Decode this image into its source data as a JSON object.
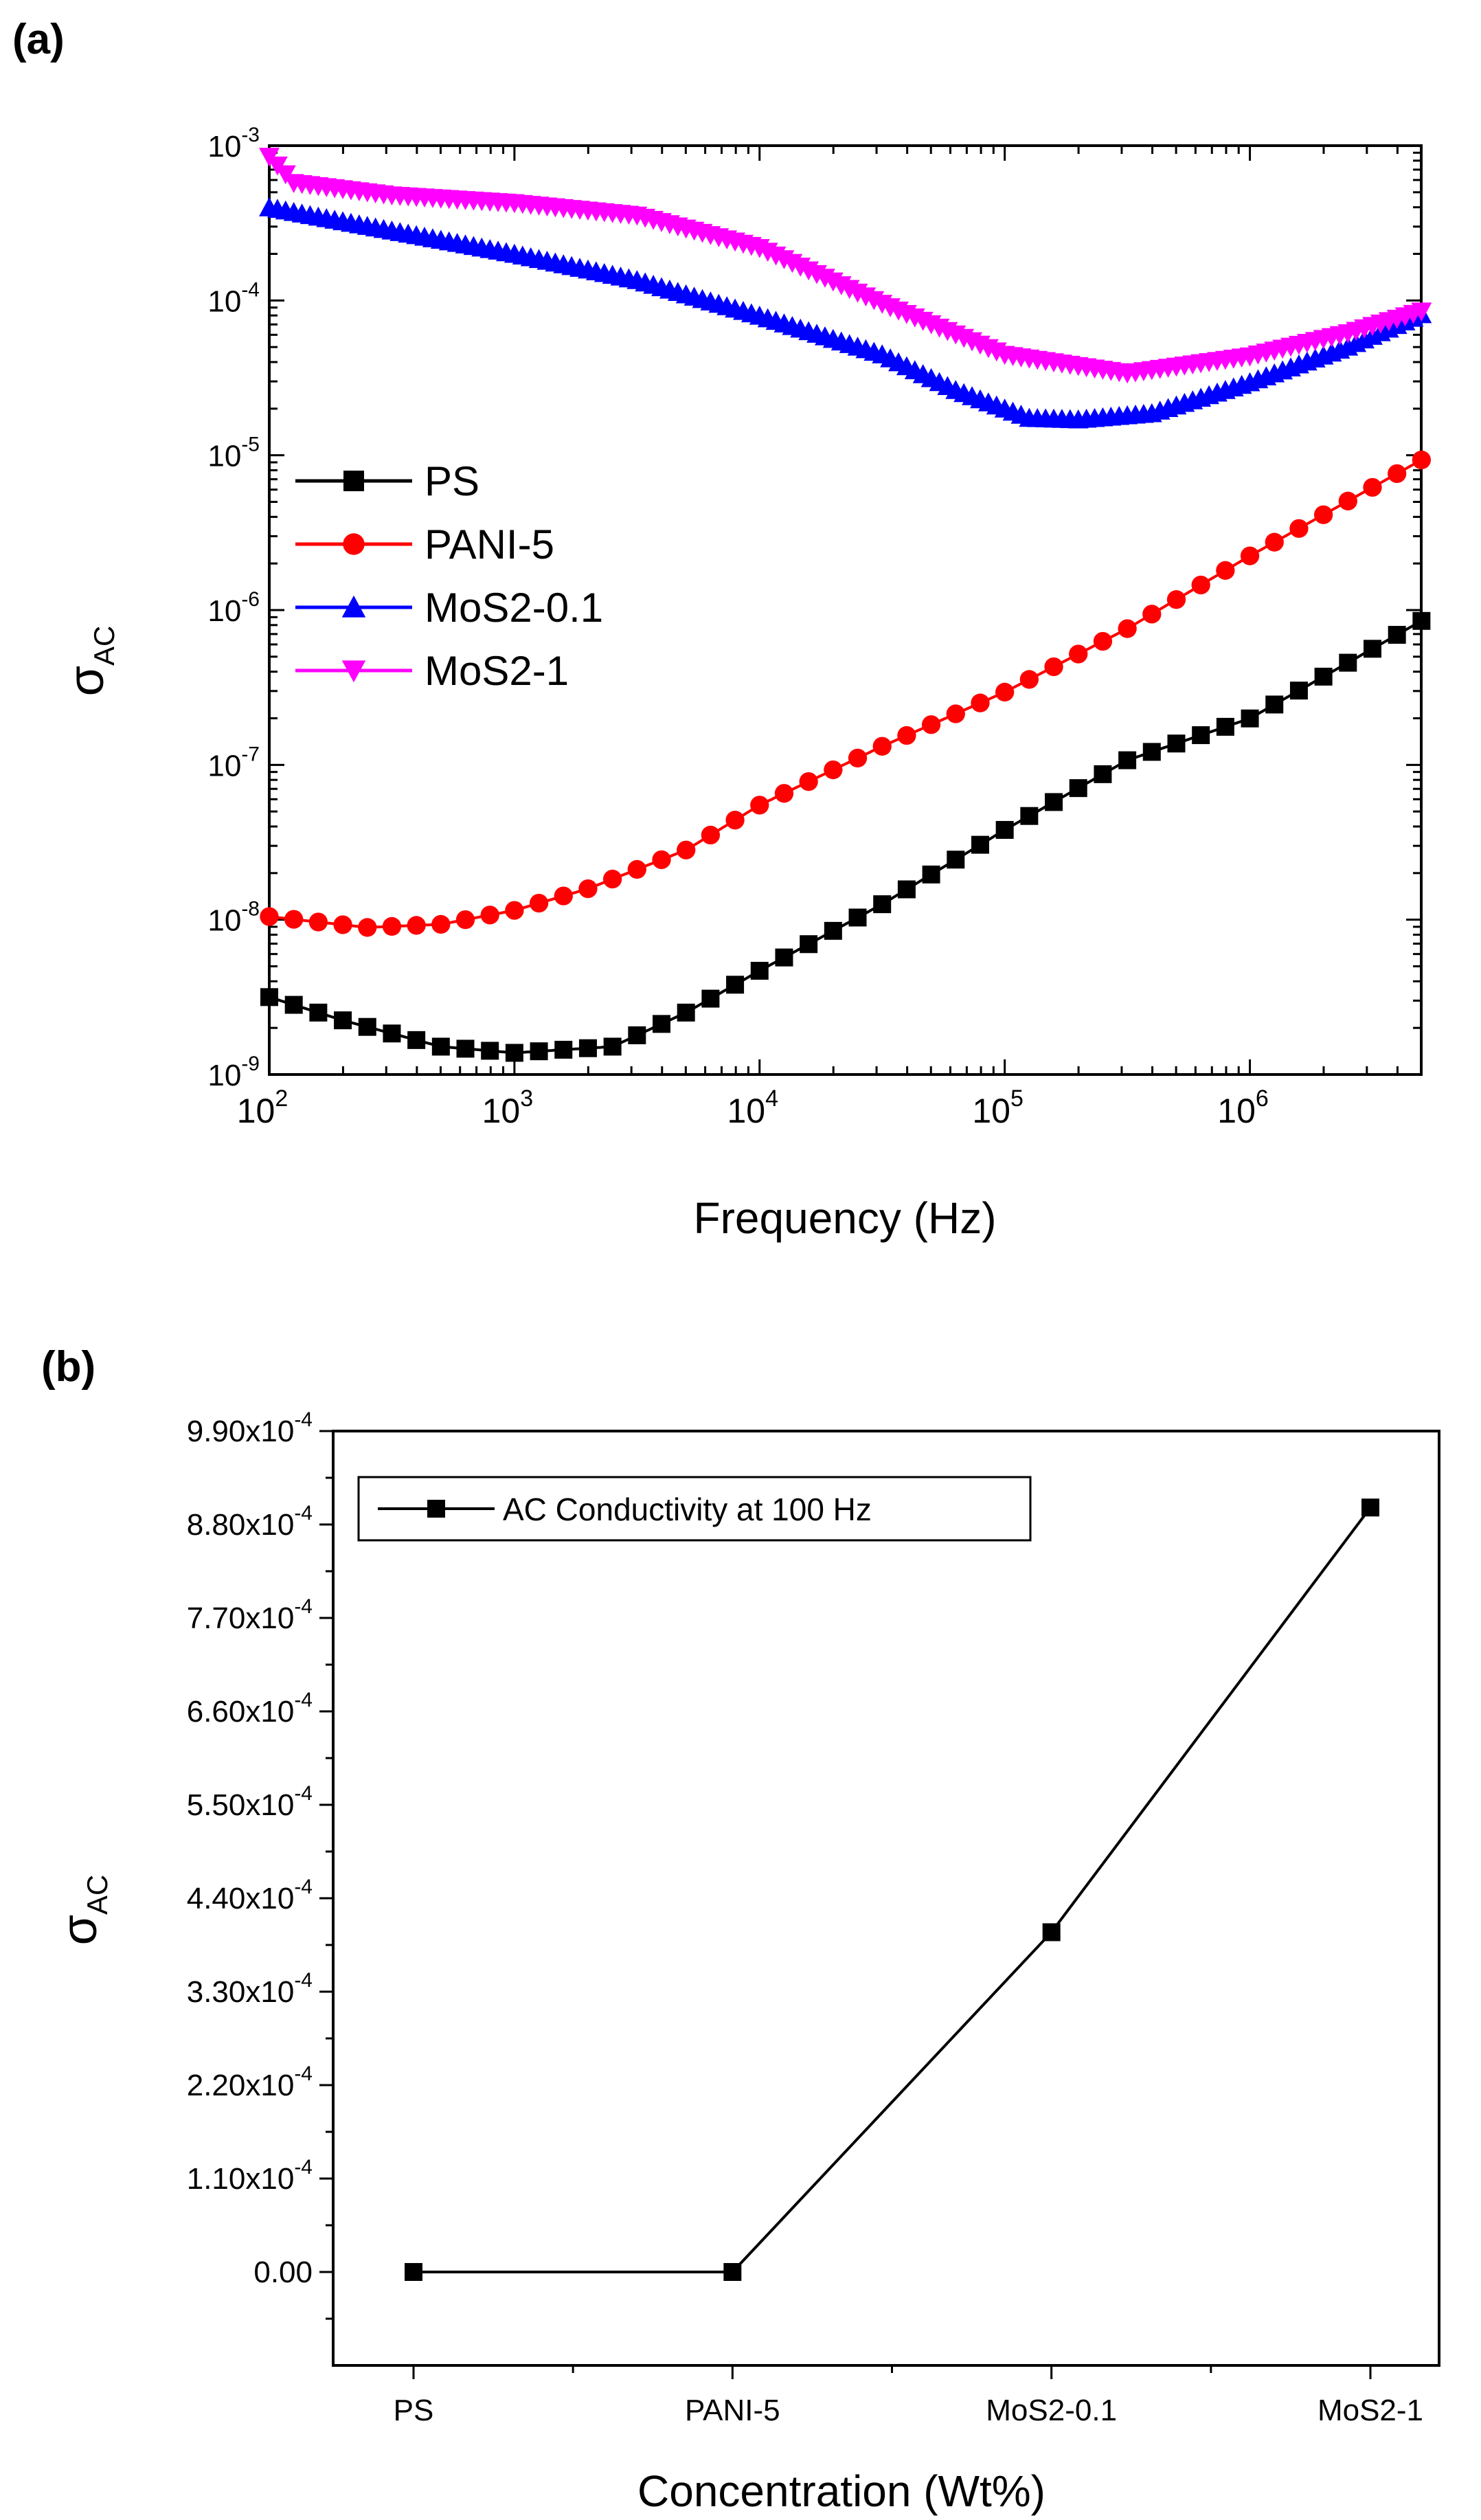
{
  "chart_data": [
    {
      "panel_label": "(a)",
      "type": "line",
      "scale": {
        "x": "log",
        "y": "log"
      },
      "xlabel": "Frequency (Hz)",
      "ylabel_symbol": "σ",
      "ylabel_sub": "AC",
      "xlim": [
        100,
        5000000
      ],
      "ylim": [
        1e-09,
        0.001
      ],
      "x_ticks": [
        {
          "base": "10",
          "exp": "2",
          "value": 100
        },
        {
          "base": "10",
          "exp": "3",
          "value": 1000
        },
        {
          "base": "10",
          "exp": "4",
          "value": 10000
        },
        {
          "base": "10",
          "exp": "5",
          "value": 100000
        },
        {
          "base": "10",
          "exp": "6",
          "value": 1000000
        }
      ],
      "y_ticks": [
        {
          "base": "10",
          "exp": "-9",
          "value": 1e-09
        },
        {
          "base": "10",
          "exp": "-8",
          "value": 1e-08
        },
        {
          "base": "10",
          "exp": "-7",
          "value": 1e-07
        },
        {
          "base": "10",
          "exp": "-6",
          "value": 1e-06
        },
        {
          "base": "10",
          "exp": "-5",
          "value": 1e-05
        },
        {
          "base": "10",
          "exp": "-4",
          "value": 0.0001
        },
        {
          "base": "10",
          "exp": "-3",
          "value": 0.001
        }
      ],
      "legend_position": "left",
      "series": [
        {
          "name": "PS",
          "color": "#000000",
          "marker": "square",
          "anchors": [
            [
              2,
              -8.5
            ],
            [
              2.3,
              -8.65
            ],
            [
              2.7,
              -8.82
            ],
            [
              3,
              -8.86
            ],
            [
              3.4,
              -8.82
            ],
            [
              3.7,
              -8.6
            ],
            [
              4,
              -8.33
            ],
            [
              4.5,
              -7.9
            ],
            [
              5,
              -7.42
            ],
            [
              5.5,
              -6.97
            ],
            [
              6,
              -6.7
            ],
            [
              6.7,
              -6.07
            ]
          ]
        },
        {
          "name": "PANI-5",
          "color": "#ff0000",
          "marker": "circle",
          "anchors": [
            [
              2,
              -7.98
            ],
            [
              2.4,
              -8.05
            ],
            [
              2.7,
              -8.03
            ],
            [
              3,
              -7.94
            ],
            [
              3.3,
              -7.8
            ],
            [
              3.7,
              -7.55
            ],
            [
              4,
              -7.26
            ],
            [
              4.5,
              -6.88
            ],
            [
              5,
              -6.53
            ],
            [
              5.5,
              -6.12
            ],
            [
              6,
              -5.65
            ],
            [
              6.7,
              -5.03
            ]
          ]
        },
        {
          "name": "MoS2-0.1",
          "color": "#0000ff",
          "marker": "triangle-up",
          "anchors": [
            [
              2,
              -3.4
            ],
            [
              2.5,
              -3.55
            ],
            [
              3,
              -3.7
            ],
            [
              3.5,
              -3.87
            ],
            [
              4,
              -4.1
            ],
            [
              4.5,
              -4.35
            ],
            [
              4.8,
              -4.58
            ],
            [
              5.1,
              -4.76
            ],
            [
              5.3,
              -4.77
            ],
            [
              5.6,
              -4.73
            ],
            [
              6,
              -4.53
            ],
            [
              6.4,
              -4.3
            ],
            [
              6.7,
              -4.09
            ]
          ]
        },
        {
          "name": "MoS2-1",
          "color": "#ff00ff",
          "marker": "triangle-down",
          "anchors": [
            [
              2,
              -3.07
            ],
            [
              2.1,
              -3.24
            ],
            [
              2.5,
              -3.32
            ],
            [
              3,
              -3.37
            ],
            [
              3.5,
              -3.45
            ],
            [
              4,
              -3.66
            ],
            [
              4.5,
              -4.02
            ],
            [
              5,
              -4.35
            ],
            [
              5.5,
              -4.47
            ],
            [
              6,
              -4.36
            ],
            [
              6.4,
              -4.21
            ],
            [
              6.7,
              -4.07
            ]
          ]
        }
      ]
    },
    {
      "panel_label": "(b)",
      "type": "line",
      "xlabel": "Concentration (Wt%)",
      "ylabel_symbol": "σ",
      "ylabel_sub": "AC",
      "categories": [
        "PS",
        "PANI-5",
        "MoS2-0.1",
        "MoS2-1"
      ],
      "values": [
        1e-08,
        1e-08,
        0.0004,
        0.0009
      ],
      "ylim": [
        -0.00011,
        0.00099
      ],
      "legend_position": "top-left",
      "series": [
        {
          "name": "AC Conductivity at 100 Hz",
          "color": "#000000",
          "marker": "square"
        }
      ],
      "y_ticks": [
        {
          "mant": "0.00",
          "exp": null,
          "value": 0
        },
        {
          "mant": "1.10x10",
          "exp": "-4",
          "value": 0.00011
        },
        {
          "mant": "2.20x10",
          "exp": "-4",
          "value": 0.00022
        },
        {
          "mant": "3.30x10",
          "exp": "-4",
          "value": 0.00033
        },
        {
          "mant": "4.40x10",
          "exp": "-4",
          "value": 0.00044
        },
        {
          "mant": "5.50x10",
          "exp": "-4",
          "value": 0.00055
        },
        {
          "mant": "6.60x10",
          "exp": "-4",
          "value": 0.00066
        },
        {
          "mant": "7.70x10",
          "exp": "-4",
          "value": 0.00077
        },
        {
          "mant": "8.80x10",
          "exp": "-4",
          "value": 0.00088
        },
        {
          "mant": "9.90x10",
          "exp": "-4",
          "value": 0.00099
        }
      ]
    }
  ]
}
